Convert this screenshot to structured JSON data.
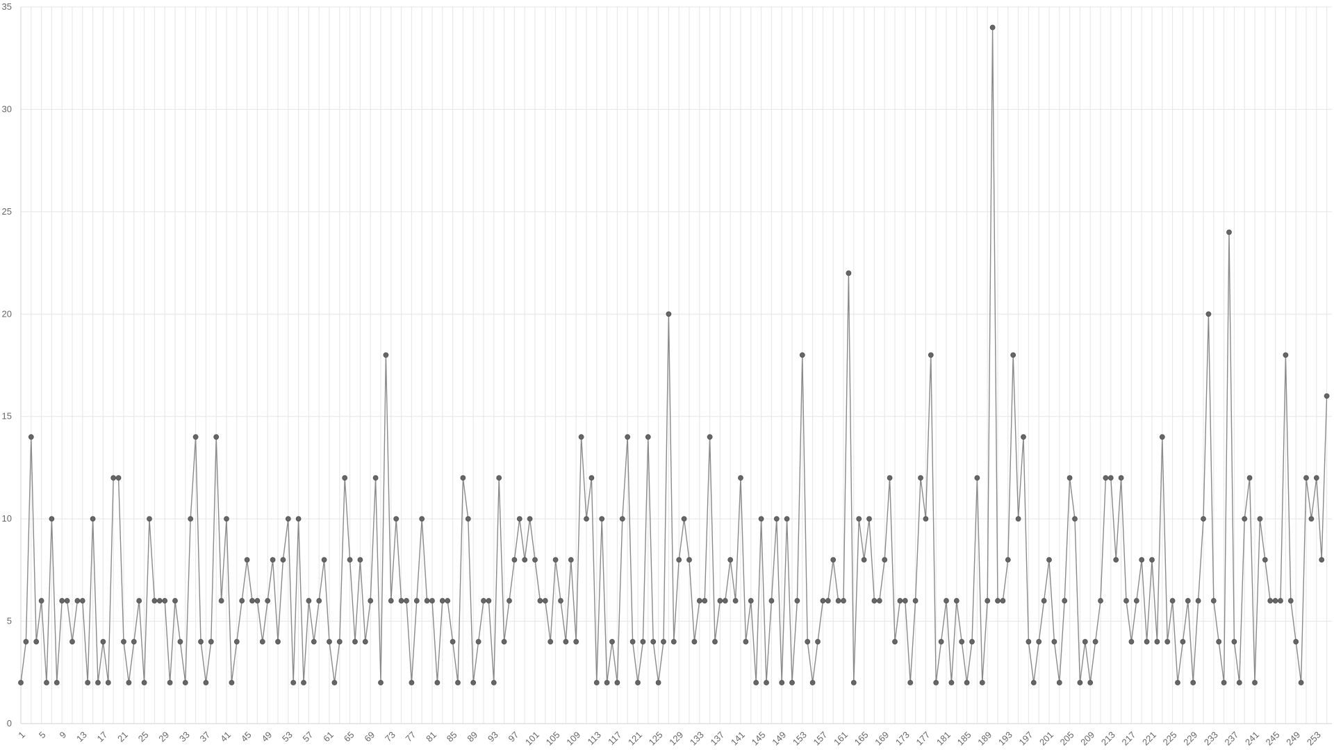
{
  "chart_data": {
    "type": "line",
    "title": "",
    "xlabel": "",
    "ylabel": "",
    "x_range": [
      1,
      256
    ],
    "ylim": [
      0,
      35
    ],
    "y_ticks": [
      0,
      5,
      10,
      15,
      20,
      25,
      30,
      35
    ],
    "x_tick_labels": [
      "1",
      "5",
      "9",
      "13",
      "17",
      "21",
      "25",
      "29",
      "33",
      "37",
      "41",
      "45",
      "49",
      "53",
      "57",
      "61",
      "65",
      "69",
      "73",
      "77",
      "81",
      "85",
      "89",
      "93",
      "97",
      "101",
      "105",
      "109",
      "113",
      "117",
      "121",
      "125",
      "129",
      "133",
      "137",
      "141",
      "145",
      "149",
      "153",
      "157",
      "161",
      "165",
      "169",
      "173",
      "177",
      "181",
      "185",
      "189",
      "193",
      "197",
      "201",
      "205",
      "209",
      "213",
      "217",
      "221",
      "225",
      "229",
      "233",
      "237",
      "241",
      "245",
      "249",
      "253"
    ],
    "grid": true,
    "legend": "none",
    "colors": {
      "line": "#8a8a8a",
      "point": "#666666",
      "grid": "#e5e5e5"
    },
    "series": [
      {
        "values": [
          2,
          4,
          14,
          4,
          6,
          2,
          10,
          2,
          6,
          6,
          4,
          6,
          6,
          2,
          10,
          2,
          4,
          2,
          12,
          12,
          4,
          2,
          4,
          6,
          2,
          10,
          6,
          6,
          6,
          2,
          6,
          4,
          2,
          10,
          14,
          4,
          2,
          4,
          14,
          6,
          10,
          2,
          4,
          6,
          8,
          6,
          6,
          4,
          6,
          8,
          4,
          8,
          10,
          2,
          10,
          2,
          6,
          4,
          6,
          8,
          4,
          2,
          4,
          12,
          8,
          4,
          8,
          4,
          6,
          12,
          2,
          18,
          6,
          10,
          6,
          6,
          2,
          6,
          10,
          6,
          6,
          2,
          6,
          6,
          4,
          2,
          12,
          10,
          2,
          4,
          6,
          6,
          2,
          12,
          4,
          6,
          8,
          10,
          8,
          10,
          8,
          6,
          6,
          4,
          8,
          6,
          4,
          8,
          4,
          14,
          10,
          12,
          2,
          10,
          2,
          4,
          2,
          10,
          14,
          4,
          2,
          4,
          14,
          4,
          2,
          4,
          20,
          4,
          8,
          10,
          8,
          4,
          6,
          6,
          14,
          4,
          6,
          6,
          8,
          6,
          12,
          4,
          6,
          2,
          10,
          2,
          6,
          10,
          2,
          10,
          2,
          6,
          18,
          4,
          2,
          4,
          6,
          6,
          8,
          6,
          6,
          22,
          2,
          10,
          8,
          10,
          6,
          6,
          8,
          12,
          4,
          6,
          6,
          2,
          6,
          12,
          10,
          18,
          2,
          4,
          6,
          2,
          6,
          4,
          2,
          4,
          12,
          2,
          6,
          34,
          6,
          6,
          8,
          18,
          10,
          14,
          4,
          2,
          4,
          6,
          8,
          4,
          2,
          6,
          12,
          10,
          2,
          4,
          2,
          4,
          6,
          12,
          12,
          8,
          12,
          6,
          4,
          6,
          8,
          4,
          8,
          4,
          14,
          4,
          6,
          2,
          4,
          6,
          2,
          6,
          10,
          20,
          6,
          4,
          2,
          24,
          4,
          2,
          10,
          12,
          2,
          10,
          8,
          6,
          6,
          6,
          18,
          6,
          4,
          2,
          12,
          10,
          12,
          8,
          16
        ]
      }
    ]
  }
}
